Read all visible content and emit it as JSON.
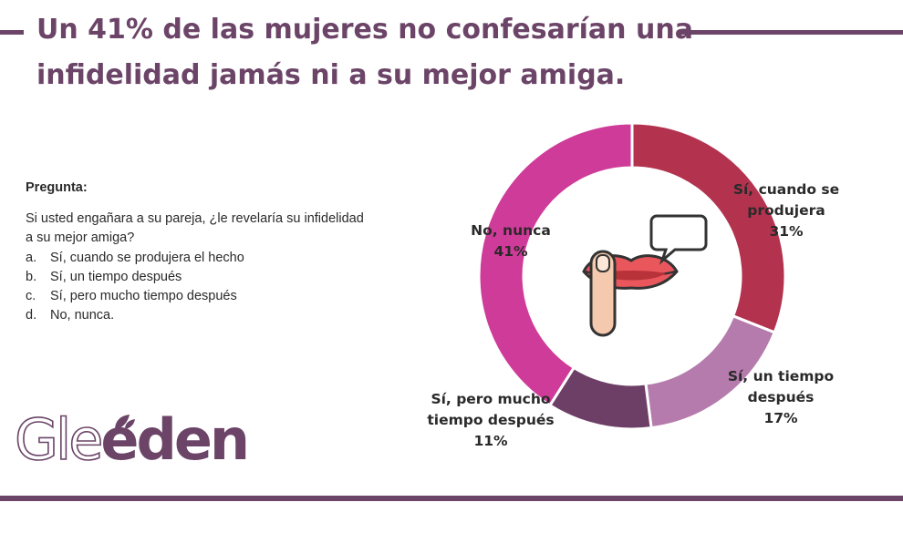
{
  "header": {
    "title_line1": "Un 41% de las mujeres no confesarían una",
    "title_line2": "infidelidad jamás ni a su mejor amiga."
  },
  "question": {
    "heading": "Pregunta:",
    "text": "Si usted engañara a su pareja, ¿le revelaría su infidelidad a su mejor amiga?",
    "options": [
      {
        "letter": "a.",
        "text": "Sí, cuando se produjera el hecho"
      },
      {
        "letter": "b.",
        "text": "Sí, un tiempo después"
      },
      {
        "letter": "c.",
        "text": "Sí, pero mucho tiempo después"
      },
      {
        "letter": "d.",
        "text": "No, nunca."
      }
    ]
  },
  "brand": {
    "logo_part1": "Gle",
    "logo_part2": "eden"
  },
  "center_icon": "lips-finger-speech-bubble-icon",
  "colors": {
    "brand": "#6b4468",
    "si_cuando": "#b3334f",
    "si_tiempo": "#b57bad",
    "si_mucho": "#6e3f66",
    "no_nunca": "#cf3b99"
  },
  "chart_data": {
    "type": "pie",
    "variant": "donut",
    "slices": [
      {
        "label_lines": [
          "Sí, cuando se",
          "produjera"
        ],
        "value": 31,
        "value_label": "31%",
        "color": "#b3334f"
      },
      {
        "label_lines": [
          "Sí, un tiempo",
          "después"
        ],
        "value": 17,
        "value_label": "17%",
        "color": "#b57bad"
      },
      {
        "label_lines": [
          "Sí, pero mucho",
          "tiempo después"
        ],
        "value": 11,
        "value_label": "11%",
        "color": "#6e3f66"
      },
      {
        "label_lines": [
          "No, nunca"
        ],
        "value": 41,
        "value_label": "41%",
        "color": "#cf3b99"
      }
    ]
  }
}
